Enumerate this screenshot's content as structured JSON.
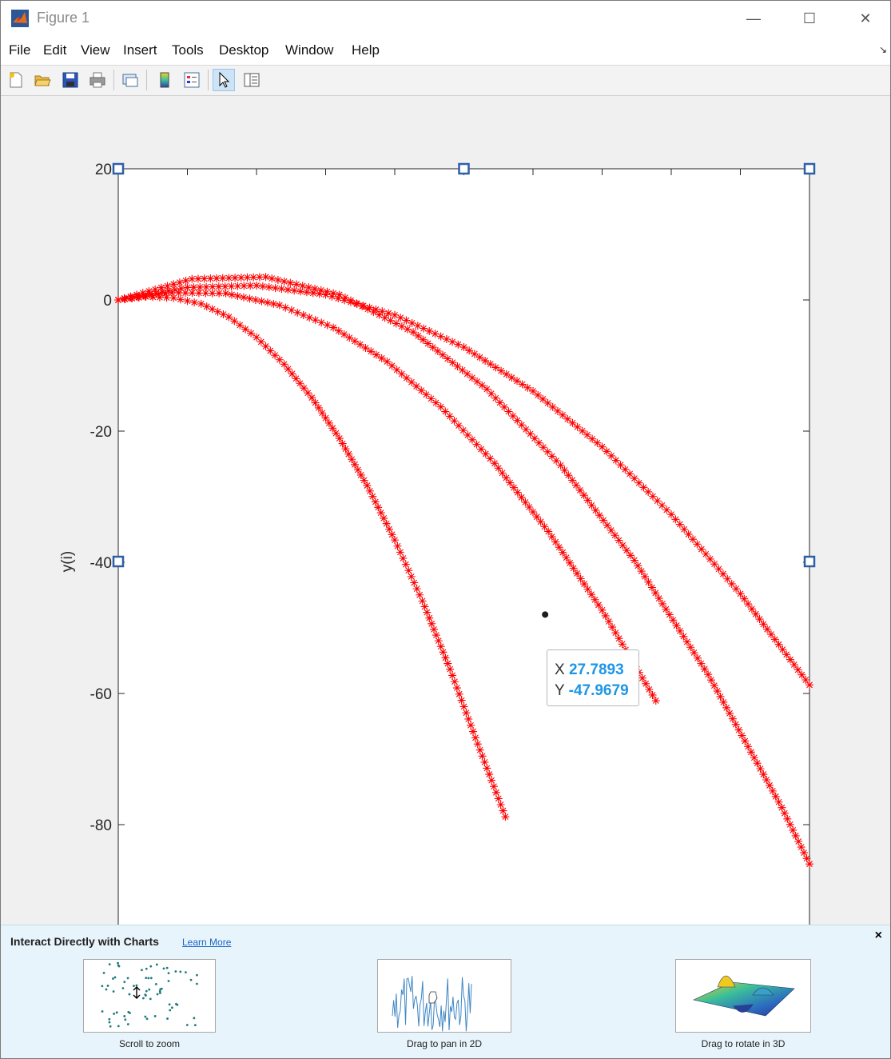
{
  "window": {
    "title": "Figure 1",
    "controls": {
      "minimize": "—",
      "maximize": "☐",
      "close": "✕"
    }
  },
  "menu": {
    "items": [
      "File",
      "Edit",
      "View",
      "Insert",
      "Tools",
      "Desktop",
      "Window",
      "Help"
    ],
    "overflow_icon": "↘"
  },
  "toolbar": {
    "buttons": [
      "new-figure-icon",
      "open-file-icon",
      "save-icon",
      "print-icon",
      "link-plot-icon",
      "colorbar-icon",
      "legend-icon",
      "edit-plot-icon",
      "property-inspector-icon"
    ],
    "active": "edit-plot-icon"
  },
  "chart_data": {
    "type": "scatter",
    "marker": "*",
    "color": "#ff0000",
    "title": "",
    "xlabel": "",
    "ylabel": "y(i)",
    "ylim": [
      -95,
      20
    ],
    "yticks": [
      20,
      0,
      -20,
      -40,
      -60,
      -80
    ],
    "ytick_labels": [
      "20",
      "0",
      "-20",
      "-40",
      "-60",
      "-80"
    ],
    "xlim": [
      0,
      45
    ],
    "x_tick_count": 10,
    "grid": false,
    "series": [
      {
        "angle_deg": 15,
        "x": [
          0,
          1.8,
          3.6,
          5.4,
          7.2,
          9.0,
          10.8,
          12.6,
          14.4,
          16.2,
          18.0,
          19.8,
          21.6,
          23.4,
          25.2
        ],
        "y": [
          0,
          0.5,
          0.3,
          -0.6,
          -2.6,
          -5.7,
          -9.8,
          -14.9,
          -21.1,
          -28.3,
          -36.6,
          -45.9,
          -56.3,
          -67.7,
          -78.8
        ]
      },
      {
        "angle_deg": 22,
        "x": [
          0,
          3.5,
          7.0,
          10.5,
          14.0,
          17.5,
          21.0,
          24.5,
          28.0,
          31.5,
          35.0
        ],
        "y": [
          0,
          1.1,
          1.0,
          -0.8,
          -4.2,
          -9.4,
          -16.3,
          -24.9,
          -35.3,
          -47.3,
          -61.1
        ]
      },
      {
        "angle_deg": 30,
        "x": [
          0,
          4.5,
          9.0,
          13.5,
          18.0,
          22.5,
          27.0,
          31.5,
          36.0,
          40.5,
          45.0
        ],
        "y": [
          0,
          1.9,
          2.2,
          0.8,
          -2.3,
          -7.2,
          -13.9,
          -22.4,
          -32.7,
          -44.8,
          -58.7
        ]
      },
      {
        "angle_deg": 40,
        "x": [
          0,
          4.8,
          9.6,
          14.4,
          19.2,
          24.0,
          28.8,
          33.6,
          38.4,
          43.2,
          45.0
        ],
        "y": [
          0,
          3.2,
          3.5,
          0.8,
          -4.9,
          -13.6,
          -25.2,
          -39.7,
          -57.1,
          -77.4,
          -86.0
        ]
      }
    ],
    "datatip": {
      "x_label": "X",
      "x_value": "27.7893",
      "y_label": "Y",
      "y_value": "-47.9679",
      "point": [
        27.7893,
        -47.9679
      ]
    }
  },
  "banner": {
    "title": "Interact Directly with Charts",
    "link": "Learn More",
    "close": "×",
    "tiles": [
      {
        "caption": "Scroll to zoom"
      },
      {
        "caption": "Drag to pan in 2D"
      },
      {
        "caption": "Drag to rotate in 3D"
      }
    ]
  }
}
